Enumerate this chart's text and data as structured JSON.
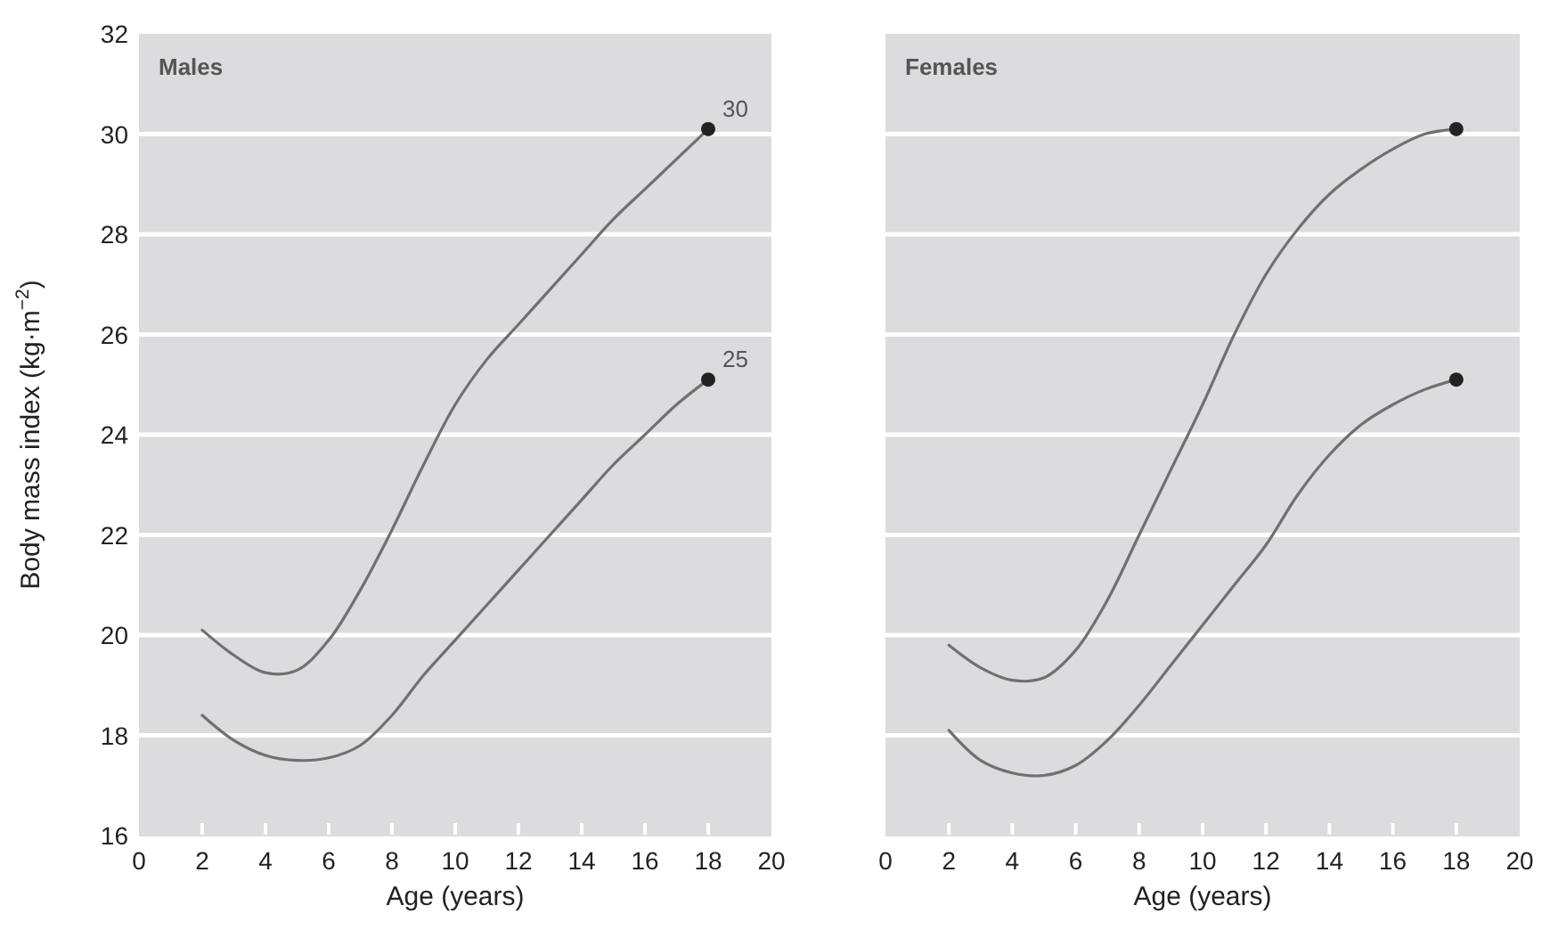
{
  "chart_data": [
    {
      "type": "line",
      "title": "Males",
      "xlabel": "Age (years)",
      "ylabel": "Body mass index (kg·m$^{−2}$)",
      "xlim": [
        0,
        20
      ],
      "xticks": [
        0,
        2,
        4,
        6,
        8,
        10,
        12,
        14,
        16,
        18,
        20
      ],
      "ylim": [
        16,
        32
      ],
      "yticks": [
        16,
        18,
        20,
        22,
        24,
        26,
        28,
        30,
        32
      ],
      "grid": "y",
      "line_style": "solid",
      "x": [
        2,
        3,
        4,
        5,
        6,
        7,
        8,
        9,
        10,
        11,
        12,
        13,
        14,
        15,
        16,
        17,
        18
      ],
      "series": [
        {
          "color": "#707070",
          "marker": "none",
          "values": [
            20.1,
            19.6,
            19.25,
            19.3,
            19.9,
            20.9,
            22.1,
            23.4,
            24.6,
            25.5,
            26.2,
            26.9,
            27.6,
            28.3,
            28.9,
            29.5,
            30.1
          ]
        },
        {
          "color": "#707070",
          "marker": "none",
          "values": [
            18.4,
            17.9,
            17.6,
            17.5,
            17.55,
            17.8,
            18.4,
            19.2,
            19.9,
            20.6,
            21.3,
            22.0,
            22.7,
            23.4,
            24.0,
            24.6,
            25.1
          ]
        },
        {
          "type": "scatter",
          "marker": "circle",
          "color": "#222222",
          "values": [
            null,
            null,
            null,
            null,
            null,
            null,
            null,
            null,
            null,
            null,
            null,
            null,
            null,
            null,
            null,
            null,
            30.1
          ]
        },
        {
          "type": "scatter",
          "marker": "circle",
          "color": "#222222",
          "values": [
            null,
            null,
            null,
            null,
            null,
            null,
            null,
            null,
            null,
            null,
            null,
            null,
            null,
            null,
            null,
            null,
            25.1
          ]
        }
      ],
      "annotations": [
        {
          "text": "30",
          "x": 18,
          "y": 30.1
        },
        {
          "text": "25",
          "x": 18,
          "y": 25.1
        }
      ]
    },
    {
      "type": "line",
      "title": "Females",
      "xlabel": "Age (years)",
      "xlim": [
        0,
        20
      ],
      "xticks": [
        0,
        2,
        4,
        6,
        8,
        10,
        12,
        14,
        16,
        18,
        20
      ],
      "ylim": [
        16,
        32
      ],
      "yticks": [
        16,
        18,
        20,
        22,
        24,
        26,
        28,
        30,
        32
      ],
      "tick_labels": "x",
      "grid": "y",
      "line_style": "solid",
      "x": [
        2,
        3,
        4,
        5,
        6,
        7,
        8,
        9,
        10,
        11,
        12,
        13,
        14,
        15,
        16,
        17,
        18
      ],
      "series": [
        {
          "color": "#707070",
          "marker": "none",
          "values": [
            19.8,
            19.35,
            19.1,
            19.15,
            19.7,
            20.7,
            22.0,
            23.3,
            24.6,
            26.0,
            27.2,
            28.1,
            28.8,
            29.3,
            29.7,
            30.0,
            30.1
          ]
        },
        {
          "color": "#707070",
          "marker": "none",
          "values": [
            18.1,
            17.5,
            17.25,
            17.2,
            17.4,
            17.9,
            18.6,
            19.4,
            20.2,
            21.0,
            21.8,
            22.8,
            23.6,
            24.2,
            24.6,
            24.9,
            25.1
          ]
        },
        {
          "type": "scatter",
          "marker": "circle",
          "color": "#222222",
          "values": [
            null,
            null,
            null,
            null,
            null,
            null,
            null,
            null,
            null,
            null,
            null,
            null,
            null,
            null,
            null,
            null,
            30.1
          ]
        },
        {
          "type": "scatter",
          "marker": "circle",
          "color": "#222222",
          "values": [
            null,
            null,
            null,
            null,
            null,
            null,
            null,
            null,
            null,
            null,
            null,
            null,
            null,
            null,
            null,
            null,
            25.1
          ]
        }
      ]
    }
  ]
}
